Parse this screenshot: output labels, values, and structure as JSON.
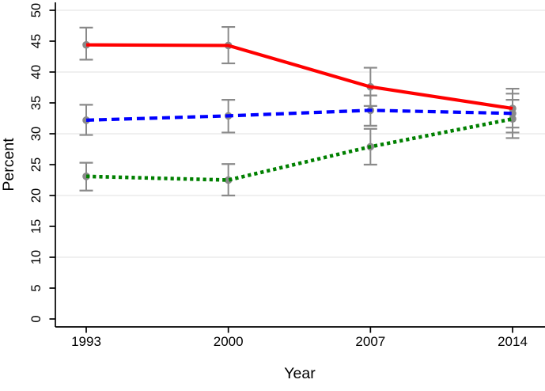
{
  "chart_data": {
    "type": "line",
    "title": "",
    "xlabel": "Year",
    "ylabel": "Percent",
    "x_labels": [
      "1993",
      "2000",
      "2007",
      "2014"
    ],
    "ylim": [
      0,
      50
    ],
    "yticks": [
      0,
      5,
      10,
      15,
      20,
      25,
      30,
      35,
      40,
      45,
      50
    ],
    "gridline_values": [
      10,
      20,
      30,
      40,
      50
    ],
    "legend_position": "none",
    "error_bars": true,
    "series": [
      {
        "name": "red-solid",
        "color": "#ff0000",
        "line_style": "solid",
        "values": [
          44.4,
          44.3,
          37.6,
          34.1
        ],
        "ci_low": [
          42.0,
          41.4,
          34.5,
          31.0
        ],
        "ci_high": [
          47.2,
          47.3,
          40.7,
          37.3
        ]
      },
      {
        "name": "blue-dashed",
        "color": "#0000ff",
        "line_style": "dashed",
        "values": [
          32.2,
          32.9,
          33.8,
          33.3
        ],
        "ci_low": [
          29.8,
          30.2,
          31.3,
          30.2
        ],
        "ci_high": [
          34.7,
          35.5,
          36.2,
          36.5
        ]
      },
      {
        "name": "green-dotted",
        "color": "#008000",
        "line_style": "dotted",
        "values": [
          23.1,
          22.5,
          27.9,
          32.4
        ],
        "ci_low": [
          20.8,
          20.0,
          25.0,
          29.3
        ],
        "ci_high": [
          25.3,
          25.1,
          30.8,
          35.5
        ]
      }
    ],
    "colors": {
      "marker": "#8a8a8a",
      "error_bar": "#8a8a8a",
      "grid": "#ebebeb",
      "axis": "#000000",
      "background": "#ffffff"
    }
  }
}
